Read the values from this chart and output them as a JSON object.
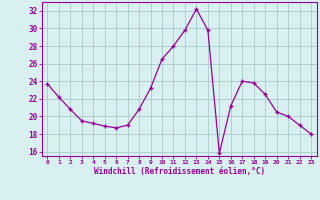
{
  "x": [
    0,
    1,
    2,
    3,
    4,
    5,
    6,
    7,
    8,
    9,
    10,
    11,
    12,
    13,
    14,
    15,
    16,
    17,
    18,
    19,
    20,
    21,
    22,
    23
  ],
  "y": [
    23.7,
    22.2,
    20.8,
    19.5,
    19.2,
    18.9,
    18.7,
    19.0,
    20.8,
    23.2,
    26.5,
    28.0,
    29.8,
    32.2,
    29.8,
    15.8,
    21.2,
    24.0,
    23.8,
    22.5,
    20.5,
    20.0,
    19.0,
    18.0
  ],
  "line_color": "#990099",
  "marker": "+",
  "marker_size": 3.5,
  "bg_color": "#d8f0f0",
  "grid_color": "#aacccc",
  "xlabel": "Windchill (Refroidissement éolien,°C)",
  "ylabel_ticks": [
    16,
    18,
    20,
    22,
    24,
    26,
    28,
    30,
    32
  ],
  "xlim": [
    -0.5,
    23.5
  ],
  "ylim": [
    15.5,
    33.0
  ]
}
